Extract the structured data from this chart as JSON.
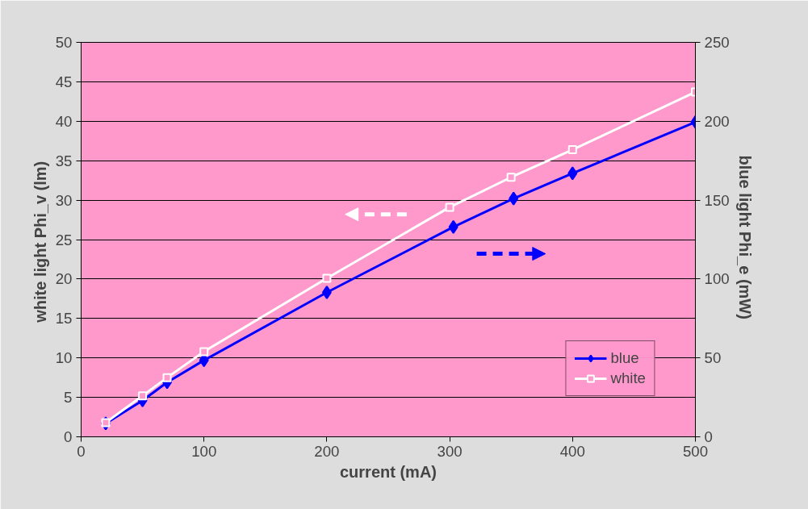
{
  "chart_data": {
    "type": "line",
    "xlabel": "current (mA)",
    "ylabel": "white light  Phi_v (lm)",
    "y2label": "blue light  Phi_e (mW)",
    "series": [
      {
        "name": "white",
        "color": "#ffffff",
        "marker": "square",
        "x": [
          20,
          50,
          70,
          100,
          200,
          300,
          350,
          400,
          500
        ],
        "values": [
          1.8,
          5.2,
          7.5,
          10.8,
          20.1,
          29.1,
          32.9,
          36.4,
          43.7
        ]
      },
      {
        "name": "blue",
        "color": "#0000ff",
        "marker": "diamond",
        "axis": "y2",
        "x": [
          20,
          50,
          70,
          100,
          200,
          303,
          352,
          400,
          500
        ],
        "values": [
          8.5,
          23,
          34.5,
          48.5,
          91.5,
          133,
          151,
          167,
          199.5
        ]
      }
    ],
    "xlim": [
      0,
      500
    ],
    "xticks": [
      0,
      100,
      200,
      300,
      400,
      500
    ],
    "ylim": [
      0,
      50
    ],
    "yticks": [
      0,
      5,
      10,
      15,
      20,
      25,
      30,
      35,
      40,
      45,
      50
    ],
    "y2lim": [
      0,
      250
    ],
    "y2ticks": [
      0,
      50,
      100,
      150,
      200,
      250
    ],
    "grid": "y",
    "legend": "bottom right",
    "line_style": "solid"
  }
}
